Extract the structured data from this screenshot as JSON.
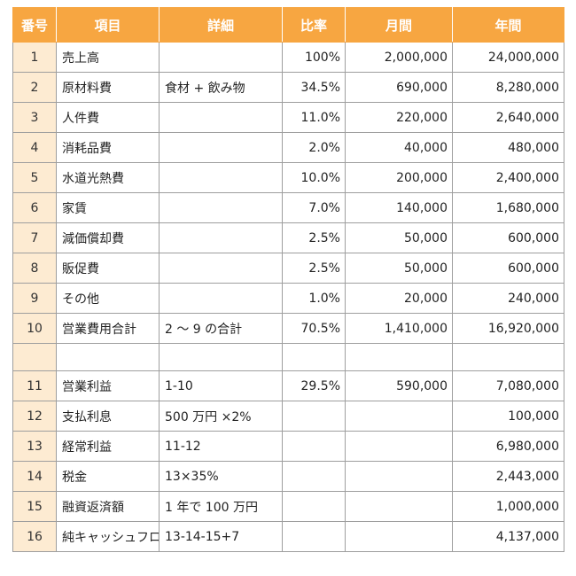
{
  "headers": [
    "番号",
    "項目",
    "詳細",
    "比率",
    "月間",
    "年間"
  ],
  "rows": [
    {
      "no": "1",
      "item": "売上高",
      "detail": "",
      "ratio": "100%",
      "monthly": "2,000,000",
      "annual": "24,000,000"
    },
    {
      "no": "2",
      "item": "原材料費",
      "detail": "食材 + 飲み物",
      "ratio": "34.5%",
      "monthly": "690,000",
      "annual": "8,280,000"
    },
    {
      "no": "3",
      "item": "人件費",
      "detail": "",
      "ratio": "11.0%",
      "monthly": "220,000",
      "annual": "2,640,000"
    },
    {
      "no": "4",
      "item": "消耗品費",
      "detail": "",
      "ratio": "2.0%",
      "monthly": "40,000",
      "annual": "480,000"
    },
    {
      "no": "5",
      "item": "水道光熱費",
      "detail": "",
      "ratio": "10.0%",
      "monthly": "200,000",
      "annual": "2,400,000"
    },
    {
      "no": "6",
      "item": "家賃",
      "detail": "",
      "ratio": "7.0%",
      "monthly": "140,000",
      "annual": "1,680,000"
    },
    {
      "no": "7",
      "item": "減価償却費",
      "detail": "",
      "ratio": "2.5%",
      "monthly": "50,000",
      "annual": "600,000"
    },
    {
      "no": "8",
      "item": "販促費",
      "detail": "",
      "ratio": "2.5%",
      "monthly": "50,000",
      "annual": "600,000"
    },
    {
      "no": "9",
      "item": "その他",
      "detail": "",
      "ratio": "1.0%",
      "monthly": "20,000",
      "annual": "240,000"
    },
    {
      "no": "10",
      "item": "営業費用合計",
      "detail": "2 ～ 9 の合計",
      "ratio": "70.5%",
      "monthly": "1,410,000",
      "annual": "16,920,000"
    },
    {
      "no": "",
      "item": "",
      "detail": "",
      "ratio": "",
      "monthly": "",
      "annual": ""
    },
    {
      "no": "11",
      "item": "営業利益",
      "detail": "1-10",
      "ratio": "29.5%",
      "monthly": "590,000",
      "annual": "7,080,000"
    },
    {
      "no": "12",
      "item": "支払利息",
      "detail": "500 万円 ×2%",
      "ratio": "",
      "monthly": "",
      "annual": "100,000"
    },
    {
      "no": "13",
      "item": "経常利益",
      "detail": "11-12",
      "ratio": "",
      "monthly": "",
      "annual": "6,980,000"
    },
    {
      "no": "14",
      "item": "税金",
      "detail": "13×35%",
      "ratio": "",
      "monthly": "",
      "annual": "2,443,000"
    },
    {
      "no": "15",
      "item": "融資返済額",
      "detail": "1 年で 100 万円",
      "ratio": "",
      "monthly": "",
      "annual": "1,000,000"
    },
    {
      "no": "16",
      "item": "純キャッシュフロー",
      "detail": "13-14-15+7",
      "ratio": "",
      "monthly": "",
      "annual": "4,137,000"
    }
  ],
  "colors": {
    "header_bg": "#f7a641",
    "number_col_bg": "#fdebd2",
    "grid": "#9e9e9e"
  }
}
